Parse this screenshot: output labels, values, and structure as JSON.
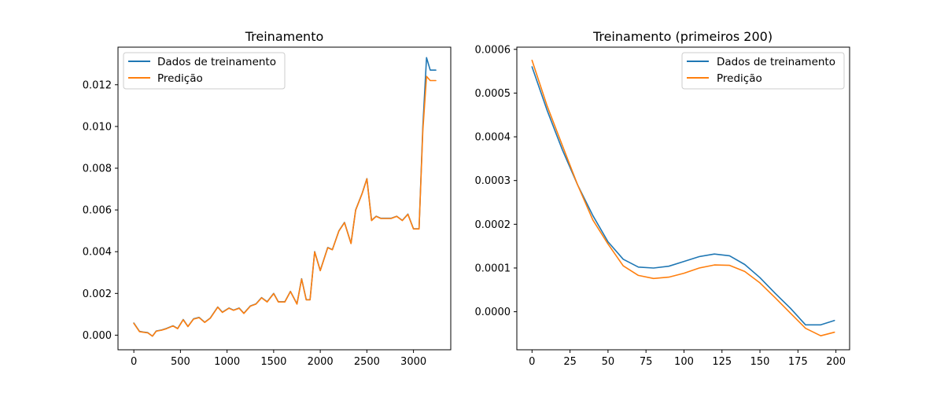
{
  "chart_data": [
    {
      "type": "line",
      "title": "Treinamento",
      "xlabel": "",
      "ylabel": "",
      "xlim": [
        -170,
        3400
      ],
      "ylim": [
        -0.0007,
        0.0138
      ],
      "xticks": [
        0,
        500,
        1000,
        1500,
        2000,
        2500,
        3000
      ],
      "xtick_labels": [
        "0",
        "500",
        "1000",
        "1500",
        "2000",
        "2500",
        "3000"
      ],
      "yticks": [
        0.0,
        0.002,
        0.004,
        0.006,
        0.008,
        0.01,
        0.012
      ],
      "ytick_labels": [
        "0.000",
        "0.002",
        "0.004",
        "0.006",
        "0.008",
        "0.010",
        "0.012"
      ],
      "grid": false,
      "legend": "top-left",
      "series": [
        {
          "name": "Dados de treinamento",
          "color": "#1f77b4",
          "x": [
            0,
            60,
            100,
            150,
            200,
            240,
            300,
            350,
            420,
            470,
            530,
            580,
            640,
            700,
            760,
            820,
            900,
            950,
            1020,
            1070,
            1130,
            1180,
            1250,
            1310,
            1370,
            1430,
            1500,
            1550,
            1620,
            1680,
            1750,
            1800,
            1850,
            1890,
            1940,
            2000,
            2080,
            2130,
            2200,
            2260,
            2330,
            2380,
            2450,
            2500,
            2550,
            2600,
            2650,
            2700,
            2760,
            2820,
            2880,
            2940,
            3000,
            3060,
            3100,
            3140,
            3180,
            3200,
            3220,
            3240
          ],
          "y": [
            0.00058,
            0.00018,
            0.00015,
            0.00012,
            -5e-05,
            0.0002,
            0.00025,
            0.00032,
            0.00045,
            0.00032,
            0.00075,
            0.00042,
            0.00078,
            0.00085,
            0.00062,
            0.00082,
            0.00135,
            0.0011,
            0.0013,
            0.0012,
            0.0013,
            0.00105,
            0.0014,
            0.0015,
            0.0018,
            0.0016,
            0.002,
            0.0016,
            0.0016,
            0.0021,
            0.0015,
            0.0027,
            0.0017,
            0.0017,
            0.004,
            0.0031,
            0.0042,
            0.0041,
            0.005,
            0.0054,
            0.0044,
            0.006,
            0.0068,
            0.0075,
            0.0055,
            0.0057,
            0.0056,
            0.0056,
            0.0056,
            0.0057,
            0.0055,
            0.0058,
            0.0051,
            0.0051,
            0.01,
            0.0133,
            0.0127,
            0.0127,
            0.0127,
            0.0127
          ]
        },
        {
          "name": "Predição",
          "color": "#ff7f0e",
          "x": [
            0,
            60,
            100,
            150,
            200,
            240,
            300,
            350,
            420,
            470,
            530,
            580,
            640,
            700,
            760,
            820,
            900,
            950,
            1020,
            1070,
            1130,
            1180,
            1250,
            1310,
            1370,
            1430,
            1500,
            1550,
            1620,
            1680,
            1750,
            1800,
            1850,
            1890,
            1940,
            2000,
            2080,
            2130,
            2200,
            2260,
            2330,
            2380,
            2450,
            2500,
            2550,
            2600,
            2650,
            2700,
            2760,
            2820,
            2880,
            2940,
            3000,
            3060,
            3100,
            3140,
            3180,
            3200,
            3220,
            3240
          ],
          "y": [
            0.00057,
            0.00017,
            0.00014,
            0.00011,
            -5e-05,
            0.00019,
            0.00024,
            0.00031,
            0.00044,
            0.00031,
            0.00074,
            0.00041,
            0.00077,
            0.00084,
            0.00061,
            0.00081,
            0.00134,
            0.00109,
            0.00129,
            0.00119,
            0.00129,
            0.00104,
            0.00139,
            0.00149,
            0.00179,
            0.00159,
            0.00199,
            0.00159,
            0.00159,
            0.00209,
            0.00149,
            0.00269,
            0.00169,
            0.00169,
            0.00399,
            0.00309,
            0.00419,
            0.00409,
            0.00499,
            0.00539,
            0.00439,
            0.00599,
            0.00679,
            0.00749,
            0.00549,
            0.00569,
            0.00559,
            0.00559,
            0.00559,
            0.00569,
            0.00549,
            0.00579,
            0.00509,
            0.00509,
            0.0098,
            0.0124,
            0.0122,
            0.0122,
            0.0122,
            0.0122
          ]
        }
      ]
    },
    {
      "type": "line",
      "title": "Treinamento (primeiros 200)",
      "xlabel": "",
      "ylabel": "",
      "xlim": [
        -10,
        209
      ],
      "ylim": [
        -8.7e-05,
        0.000605
      ],
      "xticks": [
        0,
        25,
        50,
        75,
        100,
        125,
        150,
        175,
        200
      ],
      "xtick_labels": [
        "0",
        "25",
        "50",
        "75",
        "100",
        "125",
        "150",
        "175",
        "200"
      ],
      "yticks": [
        0.0,
        0.0001,
        0.0002,
        0.0003,
        0.0004,
        0.0005,
        0.0006
      ],
      "ytick_labels": [
        "0.0000",
        "0.0001",
        "0.0002",
        "0.0003",
        "0.0004",
        "0.0005",
        "0.0006"
      ],
      "grid": false,
      "legend": "top-right",
      "series": [
        {
          "name": "Dados de treinamento",
          "color": "#1f77b4",
          "x": [
            0,
            10,
            20,
            30,
            40,
            50,
            60,
            70,
            80,
            90,
            100,
            110,
            120,
            130,
            140,
            150,
            160,
            170,
            180,
            190,
            199
          ],
          "y": [
            0.00056,
            0.00046,
            0.00037,
            0.00029,
            0.00022,
            0.00016,
            0.00012,
            0.000102,
            0.0001,
            0.000104,
            0.000115,
            0.000126,
            0.000132,
            0.000128,
            0.000108,
            7.8e-05,
            4.2e-05,
            8e-06,
            -3e-05,
            -3e-05,
            -2e-05
          ]
        },
        {
          "name": "Predição",
          "color": "#ff7f0e",
          "x": [
            0,
            10,
            20,
            30,
            40,
            50,
            60,
            70,
            80,
            90,
            100,
            110,
            120,
            130,
            140,
            150,
            160,
            170,
            180,
            190,
            199
          ],
          "y": [
            0.000575,
            0.00047,
            0.00038,
            0.00029,
            0.00021,
            0.000155,
            0.000105,
            8.3e-05,
            7.6e-05,
            7.9e-05,
            8.8e-05,
            0.0001,
            0.000107,
            0.000106,
            9.2e-05,
            6.6e-05,
            3.2e-05,
            -3e-06,
            -3.8e-05,
            -5.5e-05,
            -4.7e-05
          ]
        }
      ]
    }
  ]
}
